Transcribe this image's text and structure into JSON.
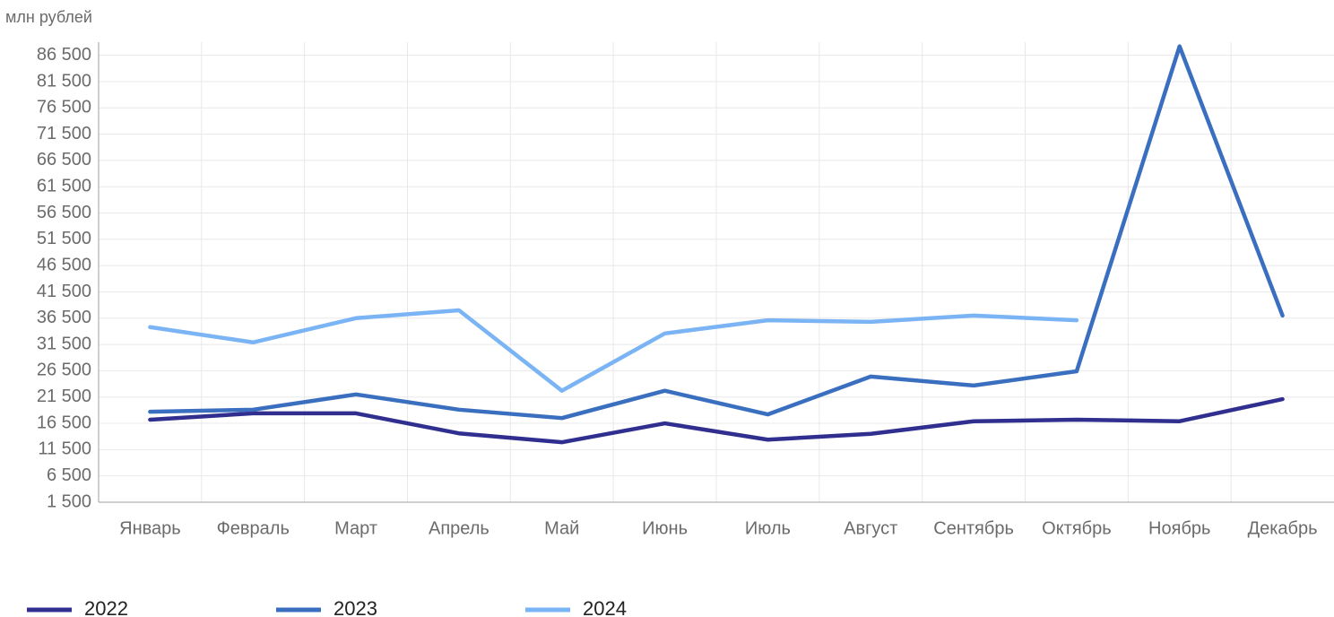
{
  "chart_data": {
    "type": "line",
    "y_label": "млн рублей",
    "categories": [
      "Январь",
      "Февраль",
      "Март",
      "Апрель",
      "Май",
      "Июнь",
      "Июль",
      "Август",
      "Сентябрь",
      "Октябрь",
      "Ноябрь",
      "Декабрь"
    ],
    "series": [
      {
        "name": "2022",
        "color": "#302f8f",
        "values": [
          17200,
          18400,
          18400,
          14600,
          12900,
          16500,
          13400,
          14500,
          16900,
          17200,
          16900,
          21100
        ]
      },
      {
        "name": "2023",
        "color": "#3a6fc0",
        "values": [
          18700,
          19100,
          22000,
          19100,
          17500,
          22700,
          18200,
          25400,
          23700,
          26400,
          88200,
          37000
        ]
      },
      {
        "name": "2024",
        "color": "#7ab4f5",
        "values": [
          34800,
          31900,
          36500,
          38000,
          22700,
          33600,
          36100,
          35800,
          37000,
          36100,
          null,
          null
        ]
      }
    ],
    "ylim": [
      1500,
      89000
    ],
    "yticks": [
      {
        "value": 1500,
        "label": "1 500"
      },
      {
        "value": 6500,
        "label": "6 500"
      },
      {
        "value": 11500,
        "label": "11 500"
      },
      {
        "value": 16500,
        "label": "16 500"
      },
      {
        "value": 21500,
        "label": "21 500"
      },
      {
        "value": 26500,
        "label": "26 500"
      },
      {
        "value": 31500,
        "label": "31 500"
      },
      {
        "value": 36500,
        "label": "36 500"
      },
      {
        "value": 41500,
        "label": "41 500"
      },
      {
        "value": 46500,
        "label": "46 500"
      },
      {
        "value": 51500,
        "label": "51 500"
      },
      {
        "value": 56500,
        "label": "56 500"
      },
      {
        "value": 61500,
        "label": "61 500"
      },
      {
        "value": 66500,
        "label": "66 500"
      },
      {
        "value": 71500,
        "label": "71 500"
      },
      {
        "value": 76500,
        "label": "76 500"
      },
      {
        "value": 81500,
        "label": "81 500"
      },
      {
        "value": 86500,
        "label": "86 500"
      }
    ],
    "grid": true
  }
}
